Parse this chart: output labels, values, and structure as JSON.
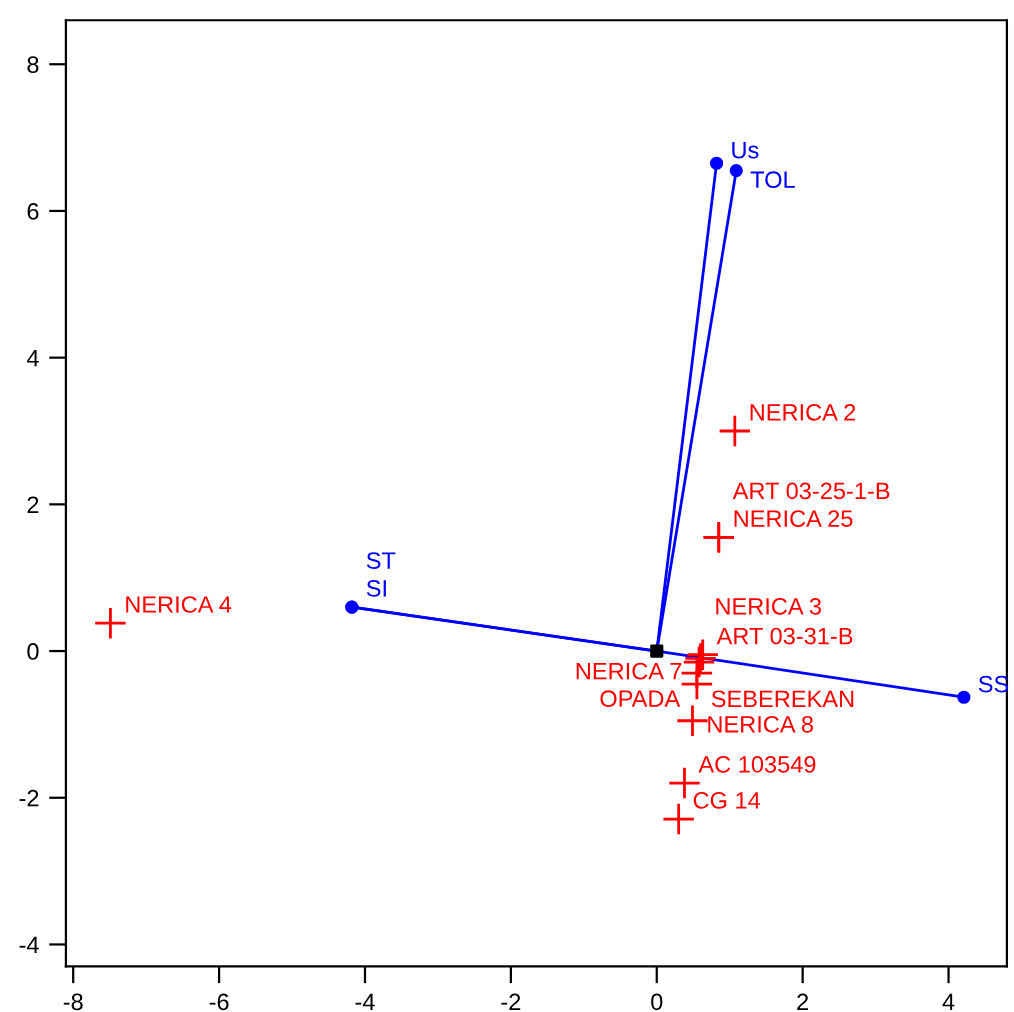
{
  "chart_data": {
    "type": "scatter",
    "xlim": [
      -8.1,
      4.8
    ],
    "ylim": [
      -4.3,
      8.6
    ],
    "xticks": [
      -8,
      -6,
      -4,
      -2,
      0,
      2,
      4
    ],
    "yticks": [
      -4,
      -2,
      0,
      2,
      4,
      6,
      8
    ],
    "grid": false,
    "legend": false,
    "series": [
      {
        "color": "#ff0000",
        "marker": "cross",
        "x": [
          -7.49,
          1.07,
          0.85,
          0.85,
          0.63,
          0.6,
          0.58,
          0.55,
          0.55,
          0.49,
          0.38,
          0.3
        ],
        "values": [
          0.38,
          3.0,
          1.55,
          1.55,
          -0.05,
          -0.1,
          -0.15,
          -0.3,
          -0.45,
          -0.95,
          -1.8,
          -2.29
        ],
        "value_labels": [
          "NERICA 4",
          "NERICA 2",
          "NERICA 25",
          "ART 03-25-1-B",
          "ART 03-31-B",
          "NERICA 3",
          "NERICA 7",
          "SEBEREKAN",
          "OPADA",
          "NERICA 8",
          "AC 103549",
          "CG 14"
        ]
      },
      {
        "type": "line",
        "color": "#0000ff",
        "marker": "circle",
        "x": [
          0,
          0.82
        ],
        "values": [
          0,
          6.65
        ],
        "value_labels": [
          null,
          "Us"
        ]
      },
      {
        "type": "line",
        "color": "#0000ff",
        "marker": "circle",
        "x": [
          0,
          1.09
        ],
        "values": [
          0,
          6.55
        ],
        "value_labels": [
          null,
          "TOL"
        ]
      },
      {
        "type": "line",
        "color": "#0000ff",
        "marker": "circle",
        "x": [
          0,
          4.21
        ],
        "values": [
          0,
          -0.63
        ],
        "value_labels": [
          null,
          "SS"
        ]
      },
      {
        "type": "line",
        "color": "#0000ff",
        "marker": "circle",
        "x": [
          0,
          -4.18
        ],
        "values": [
          0,
          0.6
        ],
        "value_labels": [
          null,
          "SI"
        ]
      },
      {
        "type": "line",
        "color": "#0000ff",
        "marker": "circle",
        "x": [
          0,
          -4.18
        ],
        "values": [
          0,
          0.6
        ],
        "value_labels": [
          null,
          "ST"
        ]
      },
      {
        "color": "#000000",
        "marker": "square",
        "x": [
          0
        ],
        "values": [
          0
        ]
      }
    ]
  }
}
